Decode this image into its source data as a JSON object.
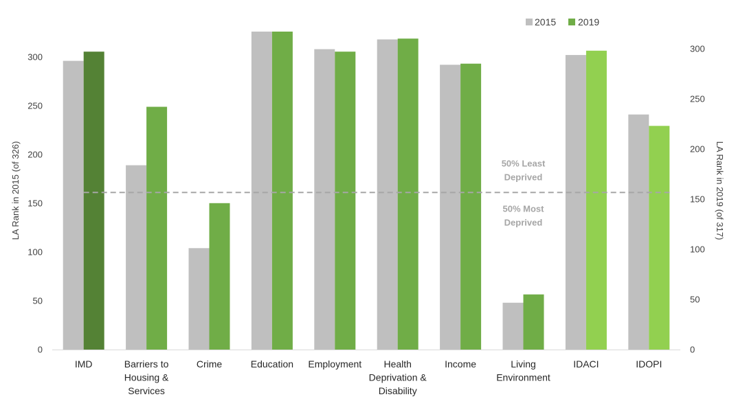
{
  "chart_data": {
    "type": "bar",
    "categories": [
      [
        "IMD"
      ],
      [
        "Barriers to",
        "Housing &",
        "Services"
      ],
      [
        "Crime"
      ],
      [
        "Education"
      ],
      [
        "Employment"
      ],
      [
        "Health",
        "Deprivation &",
        "Disability"
      ],
      [
        "Income"
      ],
      [
        "Living",
        "Environment"
      ],
      [
        "IDACI"
      ],
      [
        "IDOPI"
      ]
    ],
    "series": [
      {
        "name": "2015",
        "axis": "left",
        "color": "#bfbfbf",
        "values": [
          296,
          189,
          104,
          326,
          308,
          318,
          292,
          48,
          302,
          241
        ]
      },
      {
        "name": "2019",
        "axis": "right",
        "legend_color": "#70ad47",
        "colors": [
          "#548235",
          "#70ad47",
          "#70ad47",
          "#70ad47",
          "#70ad47",
          "#70ad47",
          "#70ad47",
          "#70ad47",
          "#92d050",
          "#92d050"
        ],
        "values": [
          297,
          242,
          146,
          317,
          297,
          310,
          285,
          55,
          298,
          223
        ]
      }
    ],
    "y_left": {
      "label": "LA Rank in 2015 (of 326)",
      "range": [
        0,
        326
      ],
      "ticks": [
        0,
        50,
        100,
        150,
        200,
        250,
        300
      ]
    },
    "y_right": {
      "label": "LA Rank in 2019 (of 317)",
      "range": [
        0,
        317
      ],
      "ticks": [
        0,
        50,
        100,
        150,
        200,
        250,
        300
      ]
    },
    "reference_line": {
      "value_left": 161,
      "style": "dashed",
      "color": "#a6a6a6"
    },
    "annotations": {
      "above": [
        "50% Least",
        "Deprived"
      ],
      "below": [
        "50% Most",
        "Deprived"
      ]
    },
    "legend": {
      "position": "top-right",
      "entries": [
        "2015",
        "2019"
      ]
    },
    "grid": false
  }
}
